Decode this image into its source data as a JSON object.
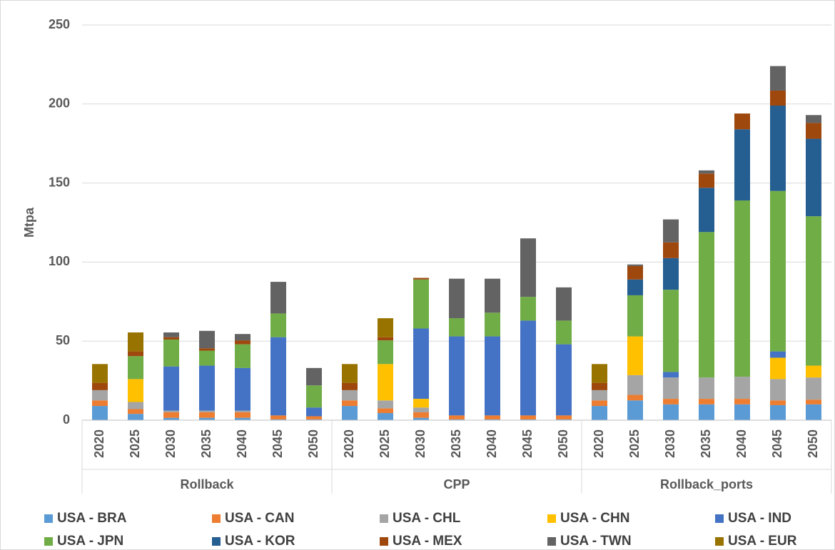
{
  "chart_data": {
    "type": "stacked-bar",
    "ylabel": "Mtpa",
    "groups": [
      {
        "name": "Rollback",
        "categories": [
          "2020",
          "2025",
          "2030",
          "2035",
          "2040",
          "2045",
          "2050"
        ]
      },
      {
        "name": "CPP",
        "categories": [
          "2020",
          "2025",
          "2030",
          "2035",
          "2040",
          "2045",
          "2050"
        ]
      },
      {
        "name": "Rollback_ports",
        "categories": [
          "2020",
          "2025",
          "2030",
          "2035",
          "2040",
          "2045",
          "2050"
        ]
      }
    ],
    "ylim": [
      0,
      250
    ],
    "yticks": [
      0,
      50,
      100,
      150,
      200,
      250
    ],
    "grid": true,
    "series": [
      {
        "name": "USA - BRA",
        "color": "#5b9bd5",
        "values": [
          9,
          4,
          1.5,
          1.5,
          1.5,
          0.5,
          0.5,
          9,
          4.5,
          1.5,
          0.5,
          0.5,
          0.5,
          0.5,
          9,
          12.5,
          10,
          10,
          10,
          9.5,
          10
        ]
      },
      {
        "name": "USA - CAN",
        "color": "#ed7d31",
        "values": [
          3.5,
          3,
          3.5,
          3.5,
          3.5,
          2.5,
          2,
          3.5,
          3,
          3.5,
          2.5,
          2.5,
          2.5,
          2.5,
          3.5,
          3.5,
          3.5,
          3.5,
          3.5,
          3,
          3
        ]
      },
      {
        "name": "USA - CHL",
        "color": "#a5a5a5",
        "values": [
          6.5,
          4.5,
          1,
          1,
          1,
          0,
          0,
          6.5,
          5,
          3,
          0,
          0,
          0,
          0,
          6.5,
          12.5,
          13.5,
          13.5,
          14,
          13.5,
          14
        ]
      },
      {
        "name": "USA - CHN",
        "color": "#ffc000",
        "values": [
          0,
          14.5,
          0,
          0,
          0,
          0,
          0,
          0,
          23,
          5.5,
          0,
          0,
          0,
          0,
          0,
          24.5,
          0,
          0,
          0,
          13.5,
          7.5
        ]
      },
      {
        "name": "USA - IND",
        "color": "#4472c4",
        "values": [
          0,
          0,
          28,
          28.5,
          27,
          49.5,
          5.5,
          0,
          0,
          44.5,
          50,
          50,
          60,
          45,
          0,
          0,
          3.5,
          0,
          0,
          4,
          0
        ]
      },
      {
        "name": "USA - JPN",
        "color": "#70ad47",
        "values": [
          0,
          14.5,
          17,
          9.5,
          15,
          15,
          14,
          0,
          15,
          31,
          11.5,
          15,
          15,
          15,
          0,
          26,
          52,
          92,
          111.5,
          101.5,
          94.5
        ]
      },
      {
        "name": "USA - KOR",
        "color": "#255e91",
        "values": [
          0,
          0,
          0,
          0,
          0,
          0,
          0,
          0,
          0,
          0,
          0,
          0,
          0,
          0,
          0,
          10,
          20,
          28,
          45,
          54,
          49
        ]
      },
      {
        "name": "USA - MEX",
        "color": "#9e480e",
        "values": [
          4.5,
          3,
          1.5,
          1.5,
          2.5,
          0,
          0,
          4.5,
          2,
          1,
          0,
          0,
          0,
          0,
          4.5,
          8.5,
          10,
          9,
          10,
          9.5,
          10
        ]
      },
      {
        "name": "USA - TWN",
        "color": "#636363",
        "values": [
          0,
          0,
          3,
          11,
          4,
          20,
          11,
          0,
          0,
          0,
          25,
          21.5,
          37,
          21,
          0,
          1,
          14.5,
          2,
          0,
          15.5,
          5
        ]
      },
      {
        "name": "USA - EUR",
        "color": "#997300",
        "values": [
          12,
          12,
          0,
          0,
          0,
          0,
          0,
          12,
          12,
          0,
          0,
          0,
          0,
          0,
          12,
          0,
          0,
          0,
          0,
          0,
          0
        ]
      }
    ]
  }
}
